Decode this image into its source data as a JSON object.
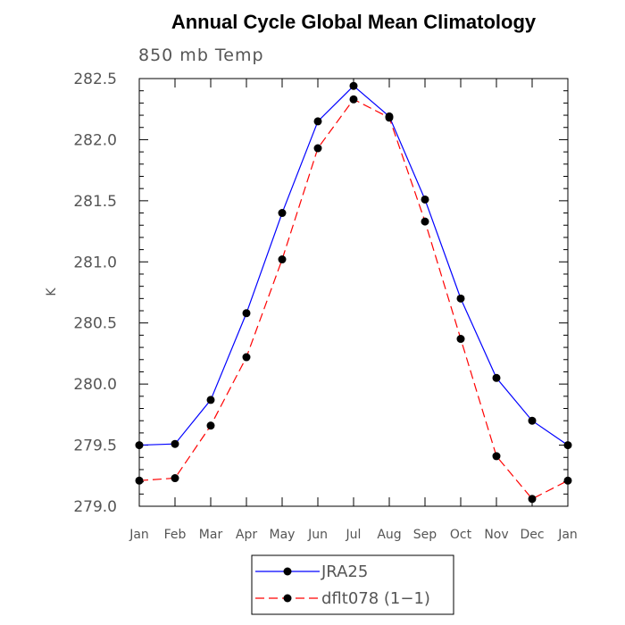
{
  "chart_data": {
    "type": "line",
    "title": "Annual Cycle Global Mean Climatology",
    "subtitle": "850 mb Temp",
    "ylabel": "K",
    "xlabel": "",
    "categories": [
      "Jan",
      "Feb",
      "Mar",
      "Apr",
      "May",
      "Jun",
      "Jul",
      "Aug",
      "Sep",
      "Oct",
      "Nov",
      "Dec",
      "Jan"
    ],
    "ylim": [
      279.0,
      282.5
    ],
    "yticks": [
      "279.0",
      "279.5",
      "280.0",
      "280.5",
      "281.0",
      "281.5",
      "282.0",
      "282.5"
    ],
    "grid": false,
    "legend_position": "bottom",
    "series": [
      {
        "name": "JRA25",
        "color": "#0000ff",
        "line_style": "solid",
        "values": [
          279.5,
          279.51,
          279.87,
          280.58,
          281.4,
          282.15,
          282.44,
          282.19,
          281.51,
          280.7,
          280.05,
          279.7,
          279.5
        ]
      },
      {
        "name": "dflt078 (1−1)",
        "color": "#ff0000",
        "line_style": "dashed",
        "values": [
          279.21,
          279.23,
          279.66,
          280.22,
          281.02,
          281.93,
          282.33,
          282.18,
          281.33,
          280.37,
          279.41,
          279.06,
          279.21
        ]
      }
    ]
  }
}
